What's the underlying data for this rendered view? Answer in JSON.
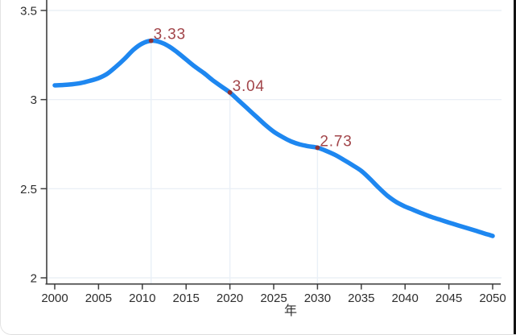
{
  "window": {
    "background": "#ffffff",
    "right_edge_color": "#121212",
    "border_color": "#dedede"
  },
  "chart_data": {
    "type": "line",
    "title": "",
    "xlabel": "年",
    "ylabel": "",
    "x_range": [
      2000,
      2050
    ],
    "ylim": [
      1.96,
      3.56
    ],
    "grid": {
      "horizontal": true,
      "vertical": false,
      "droplines_at_labeled_points": true
    },
    "legend": {
      "shown": false
    },
    "x_ticks": [
      2000,
      2005,
      2010,
      2015,
      2020,
      2025,
      2030,
      2035,
      2040,
      2045,
      2050
    ],
    "y_ticks": [
      {
        "value": 3.5,
        "label": "3.5"
      },
      {
        "value": 3.0,
        "label": "3"
      },
      {
        "value": 2.5,
        "label": "2.5"
      },
      {
        "value": 2.0,
        "label": "2"
      }
    ],
    "labeled_points": [
      {
        "x": 2011,
        "y": 3.33,
        "label": "3.33"
      },
      {
        "x": 2020,
        "y": 3.04,
        "label": "3.04"
      },
      {
        "x": 2030,
        "y": 2.73,
        "label": "2.73"
      }
    ],
    "series": [
      {
        "name": "value",
        "color": "#1e87f0",
        "x": [
          2000,
          2001,
          2002,
          2003,
          2004,
          2005,
          2006,
          2007,
          2008,
          2009,
          2010,
          2011,
          2012,
          2013,
          2014,
          2015,
          2016,
          2017,
          2018,
          2019,
          2020,
          2021,
          2022,
          2023,
          2024,
          2025,
          2026,
          2027,
          2028,
          2029,
          2030,
          2031,
          2032,
          2033,
          2034,
          2035,
          2036,
          2037,
          2038,
          2039,
          2040,
          2041,
          2042,
          2043,
          2044,
          2045,
          2046,
          2047,
          2048,
          2049,
          2050
        ],
        "y": [
          3.08,
          3.082,
          3.086,
          3.093,
          3.105,
          3.12,
          3.145,
          3.185,
          3.23,
          3.28,
          3.315,
          3.33,
          3.323,
          3.3,
          3.265,
          3.225,
          3.185,
          3.15,
          3.11,
          3.075,
          3.04,
          2.995,
          2.95,
          2.905,
          2.86,
          2.82,
          2.79,
          2.765,
          2.748,
          2.738,
          2.73,
          2.712,
          2.69,
          2.662,
          2.632,
          2.6,
          2.555,
          2.505,
          2.46,
          2.425,
          2.4,
          2.38,
          2.36,
          2.342,
          2.326,
          2.31,
          2.295,
          2.28,
          2.265,
          2.25,
          2.235
        ]
      }
    ],
    "colors": {
      "line": "#1e87f0",
      "marker": "#8d3336",
      "point_label": "#a2454a",
      "axis": "#3f3f3f",
      "tick_label": "#2d2d2d",
      "gridline": "#e7edf4",
      "dropline": "#e9f0f7"
    }
  }
}
